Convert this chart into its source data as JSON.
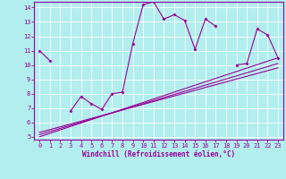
{
  "title": "",
  "xlabel": "Windchill (Refroidissement éolien,°C)",
  "bg_color": "#b2eeee",
  "grid_color": "#ffffff",
  "line_color": "#990099",
  "x_data": [
    0,
    1,
    2,
    3,
    4,
    5,
    6,
    7,
    8,
    9,
    10,
    11,
    12,
    13,
    14,
    15,
    16,
    17,
    18,
    19,
    20,
    21,
    22,
    23
  ],
  "y_main": [
    11.0,
    10.3,
    null,
    6.8,
    7.8,
    7.3,
    6.9,
    8.0,
    8.1,
    11.5,
    14.2,
    14.4,
    13.2,
    13.5,
    13.1,
    11.1,
    13.2,
    12.7,
    null,
    10.0,
    10.1,
    12.5,
    12.1,
    10.5
  ],
  "reg_lines": [
    [
      5.0,
      10.5
    ],
    [
      5.15,
      10.1
    ],
    [
      5.3,
      9.8
    ]
  ],
  "xlim": [
    -0.5,
    23.5
  ],
  "ylim": [
    4.8,
    14.4
  ],
  "yticks": [
    5,
    6,
    7,
    8,
    9,
    10,
    11,
    12,
    13,
    14
  ],
  "xticks": [
    0,
    1,
    2,
    3,
    4,
    5,
    6,
    7,
    8,
    9,
    10,
    11,
    12,
    13,
    14,
    15,
    16,
    17,
    18,
    19,
    20,
    21,
    22,
    23
  ],
  "tick_fontsize": 5,
  "xlabel_fontsize": 5.5,
  "marker": "D",
  "markersize": 2.0,
  "linewidth": 0.8
}
